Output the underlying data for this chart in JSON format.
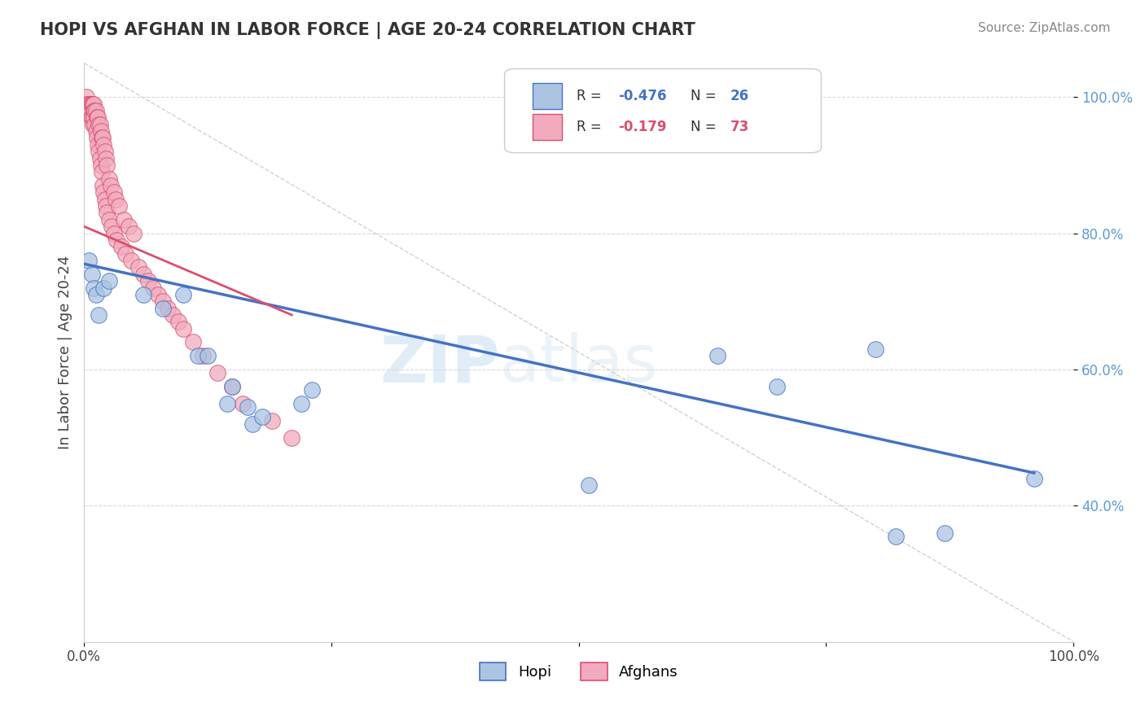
{
  "title": "HOPI VS AFGHAN IN LABOR FORCE | AGE 20-24 CORRELATION CHART",
  "source": "Source: ZipAtlas.com",
  "ylabel": "In Labor Force | Age 20-24",
  "xlim": [
    0.0,
    1.0
  ],
  "ylim": [
    0.2,
    1.05
  ],
  "xticks": [
    0.0,
    0.25,
    0.5,
    0.75,
    1.0
  ],
  "xticklabels": [
    "0.0%",
    "",
    "",
    "",
    "100.0%"
  ],
  "yticks": [
    0.4,
    0.6,
    0.8,
    1.0
  ],
  "yticklabels": [
    "40.0%",
    "60.0%",
    "80.0%",
    "100.0%"
  ],
  "hopi_color": "#aac4e2",
  "afghan_color": "#f2abbe",
  "hopi_R": -0.476,
  "hopi_N": 26,
  "afghan_R": -0.179,
  "afghan_N": 73,
  "hopi_line_color": "#4472c4",
  "afghan_line_color": "#d94f6e",
  "ref_line_color": "#cccccc",
  "background_color": "#ffffff",
  "watermark_zip": "ZIP",
  "watermark_atlas": "atlas",
  "hopi_x": [
    0.005,
    0.008,
    0.01,
    0.012,
    0.015,
    0.02,
    0.025,
    0.06,
    0.08,
    0.1,
    0.115,
    0.125,
    0.145,
    0.15,
    0.165,
    0.17,
    0.18,
    0.22,
    0.23,
    0.51,
    0.64,
    0.7,
    0.8,
    0.82,
    0.87,
    0.96
  ],
  "hopi_y": [
    0.76,
    0.74,
    0.72,
    0.71,
    0.68,
    0.72,
    0.73,
    0.71,
    0.69,
    0.71,
    0.62,
    0.62,
    0.55,
    0.575,
    0.545,
    0.52,
    0.53,
    0.55,
    0.57,
    0.43,
    0.62,
    0.575,
    0.63,
    0.355,
    0.36,
    0.44
  ],
  "afghan_x": [
    0.002,
    0.003,
    0.004,
    0.005,
    0.006,
    0.006,
    0.007,
    0.007,
    0.008,
    0.008,
    0.009,
    0.009,
    0.01,
    0.01,
    0.01,
    0.011,
    0.011,
    0.012,
    0.012,
    0.013,
    0.013,
    0.014,
    0.014,
    0.015,
    0.015,
    0.016,
    0.016,
    0.017,
    0.017,
    0.018,
    0.018,
    0.019,
    0.019,
    0.02,
    0.02,
    0.021,
    0.021,
    0.022,
    0.022,
    0.023,
    0.023,
    0.025,
    0.025,
    0.027,
    0.028,
    0.03,
    0.03,
    0.032,
    0.033,
    0.035,
    0.038,
    0.04,
    0.042,
    0.045,
    0.048,
    0.05,
    0.055,
    0.06,
    0.065,
    0.07,
    0.075,
    0.08,
    0.085,
    0.09,
    0.095,
    0.1,
    0.11,
    0.12,
    0.135,
    0.15,
    0.16,
    0.19,
    0.21
  ],
  "afghan_y": [
    1.0,
    0.99,
    0.99,
    0.98,
    0.99,
    0.98,
    0.99,
    0.97,
    0.99,
    0.97,
    0.99,
    0.96,
    0.99,
    0.98,
    0.97,
    0.98,
    0.96,
    0.98,
    0.95,
    0.97,
    0.94,
    0.97,
    0.93,
    0.96,
    0.92,
    0.96,
    0.91,
    0.95,
    0.9,
    0.94,
    0.89,
    0.94,
    0.87,
    0.93,
    0.86,
    0.92,
    0.85,
    0.91,
    0.84,
    0.9,
    0.83,
    0.88,
    0.82,
    0.87,
    0.81,
    0.86,
    0.8,
    0.85,
    0.79,
    0.84,
    0.78,
    0.82,
    0.77,
    0.81,
    0.76,
    0.8,
    0.75,
    0.74,
    0.73,
    0.72,
    0.71,
    0.7,
    0.69,
    0.68,
    0.67,
    0.66,
    0.64,
    0.62,
    0.595,
    0.575,
    0.55,
    0.525,
    0.5
  ],
  "hopi_line_x0": 0.0,
  "hopi_line_y0": 0.755,
  "hopi_line_x1": 0.96,
  "hopi_line_y1": 0.448,
  "afghan_line_x0": 0.0,
  "afghan_line_y0": 0.81,
  "afghan_line_x1": 0.21,
  "afghan_line_y1": 0.68
}
